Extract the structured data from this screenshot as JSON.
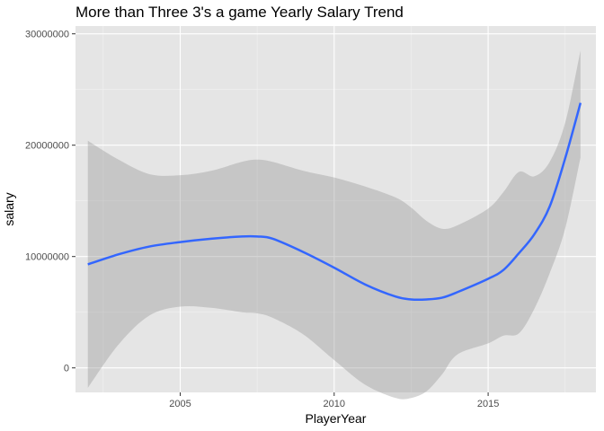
{
  "chart_data": {
    "type": "line",
    "title": "More than Three 3's a game Yearly Salary Trend",
    "xlabel": "PlayerYear",
    "ylabel": "salary",
    "xlim": [
      2001.6,
      2018.5
    ],
    "ylim": [
      -2200000,
      30700000
    ],
    "x_ticks": [
      2005,
      2010,
      2015
    ],
    "x_tick_labels": [
      "2005",
      "2010",
      "2015"
    ],
    "y_ticks": [
      0,
      10000000,
      20000000,
      30000000
    ],
    "y_tick_labels": [
      "0",
      "10000000",
      "20000000",
      "30000000"
    ],
    "grid": true,
    "background": "#e5e5e5",
    "line_color": "#3366ff",
    "band_color": "#999999",
    "series": [
      {
        "type": "smooth_fit",
        "x": [
          2002,
          2003,
          2004,
          2005,
          2006,
          2007,
          2007.5,
          2008,
          2009,
          2010,
          2011,
          2012,
          2012.5,
          2013,
          2013.5,
          2014,
          2015,
          2015.5,
          2016,
          2016.5,
          2017,
          2017.5,
          2018
        ],
        "y": [
          9300000,
          10200000,
          10900000,
          11300000,
          11600000,
          11800000,
          11800000,
          11600000,
          10400000,
          9000000,
          7500000,
          6400000,
          6150000,
          6150000,
          6300000,
          6800000,
          8000000,
          8800000,
          10300000,
          12000000,
          14500000,
          18800000,
          23800000
        ],
        "lower": [
          -1800000,
          2100000,
          4700000,
          5500000,
          5400000,
          5000000,
          4900000,
          4500000,
          3000000,
          700000,
          -1500000,
          -2700000,
          -2700000,
          -2100000,
          -600000,
          1200000,
          2200000,
          2900000,
          3100000,
          5300000,
          8500000,
          12500000,
          18900000
        ],
        "upper": [
          20400000,
          18700000,
          17400000,
          17300000,
          17700000,
          18500000,
          18700000,
          18500000,
          17700000,
          17100000,
          16300000,
          15300000,
          14400000,
          13200000,
          12500000,
          12800000,
          14300000,
          15800000,
          17600000,
          17200000,
          18500000,
          22000000,
          28500000
        ]
      }
    ]
  }
}
